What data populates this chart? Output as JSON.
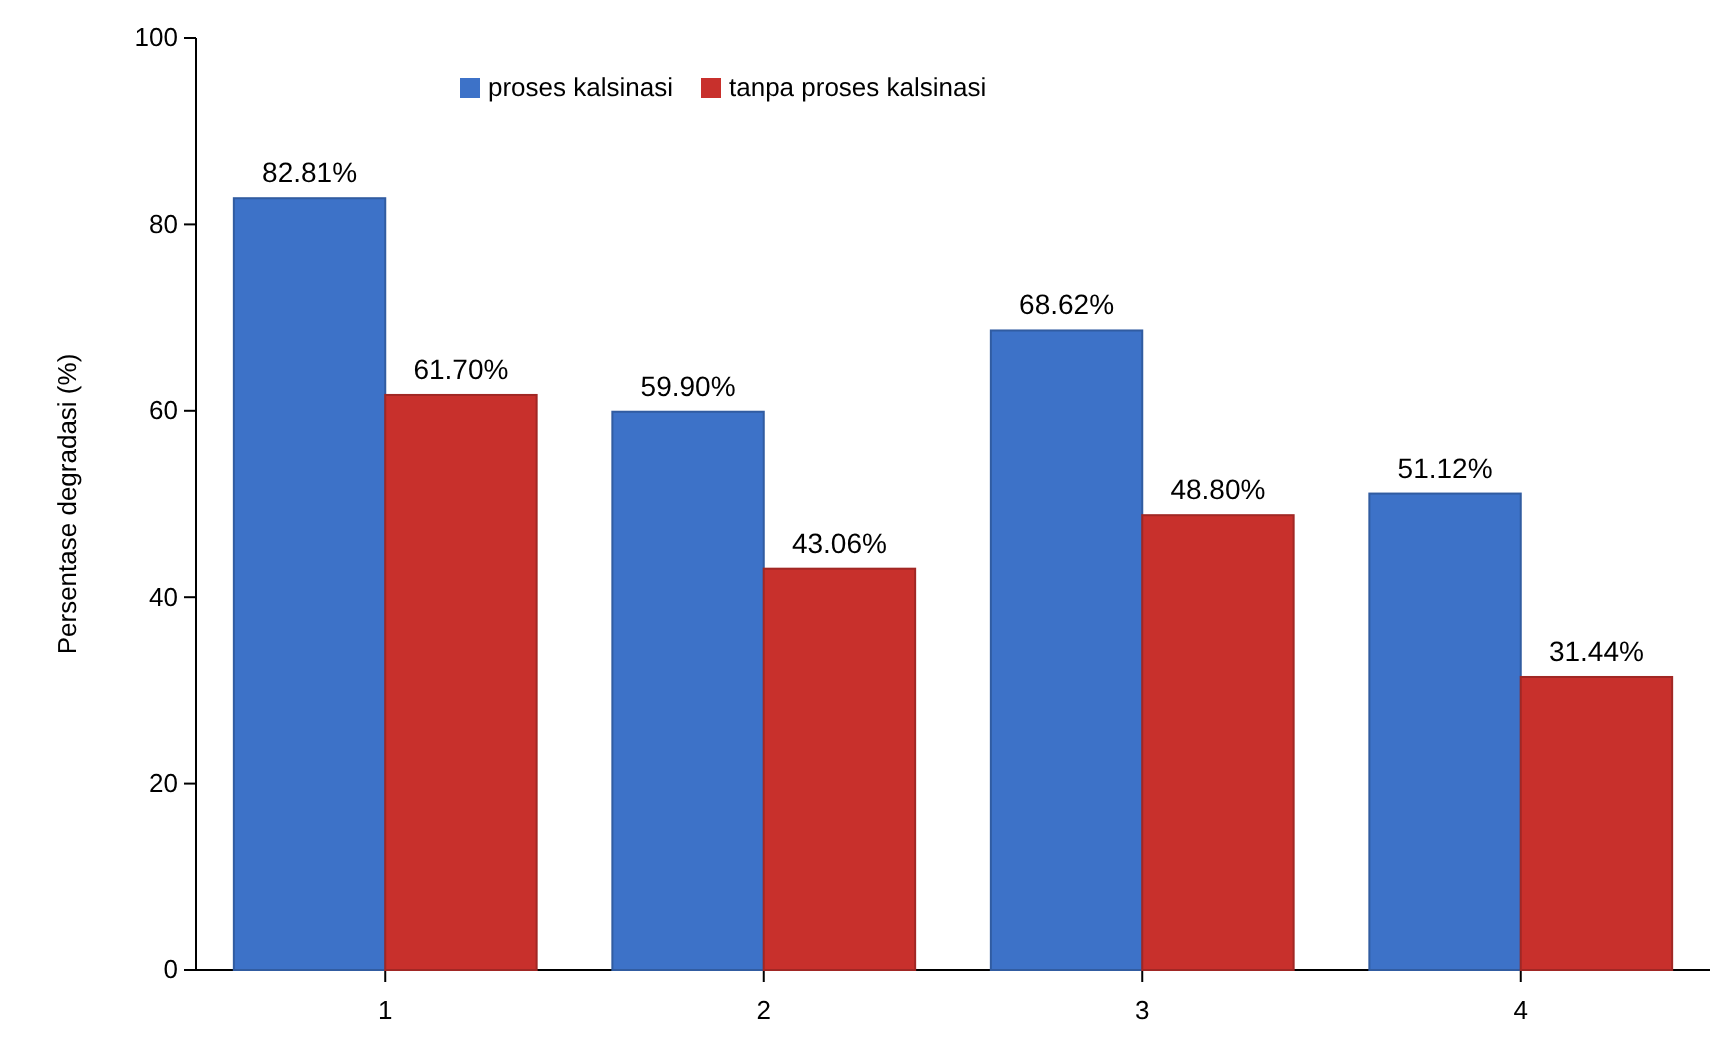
{
  "chart_data": {
    "type": "bar",
    "ylabel": "Persentase degradasi (%)",
    "categories": [
      "1",
      "2",
      "3",
      "4"
    ],
    "series": [
      {
        "name": "proses kalsinasi",
        "color": "#3d72c8",
        "values": [
          82.81,
          59.9,
          68.62,
          51.12
        ],
        "value_labels": [
          "82.81%",
          "59.90%",
          "68.62%",
          "51.12%"
        ]
      },
      {
        "name": "tanpa proses kalsinasi",
        "color": "#c8302c",
        "values": [
          61.7,
          43.06,
          48.8,
          31.44
        ],
        "value_labels": [
          "61.70%",
          "43.06%",
          "48.80%",
          "31.44%"
        ]
      }
    ],
    "ylim": [
      0,
      100
    ],
    "yticks": [
      0,
      20,
      40,
      60,
      80,
      100
    ],
    "legend": "top",
    "grid": false
  }
}
